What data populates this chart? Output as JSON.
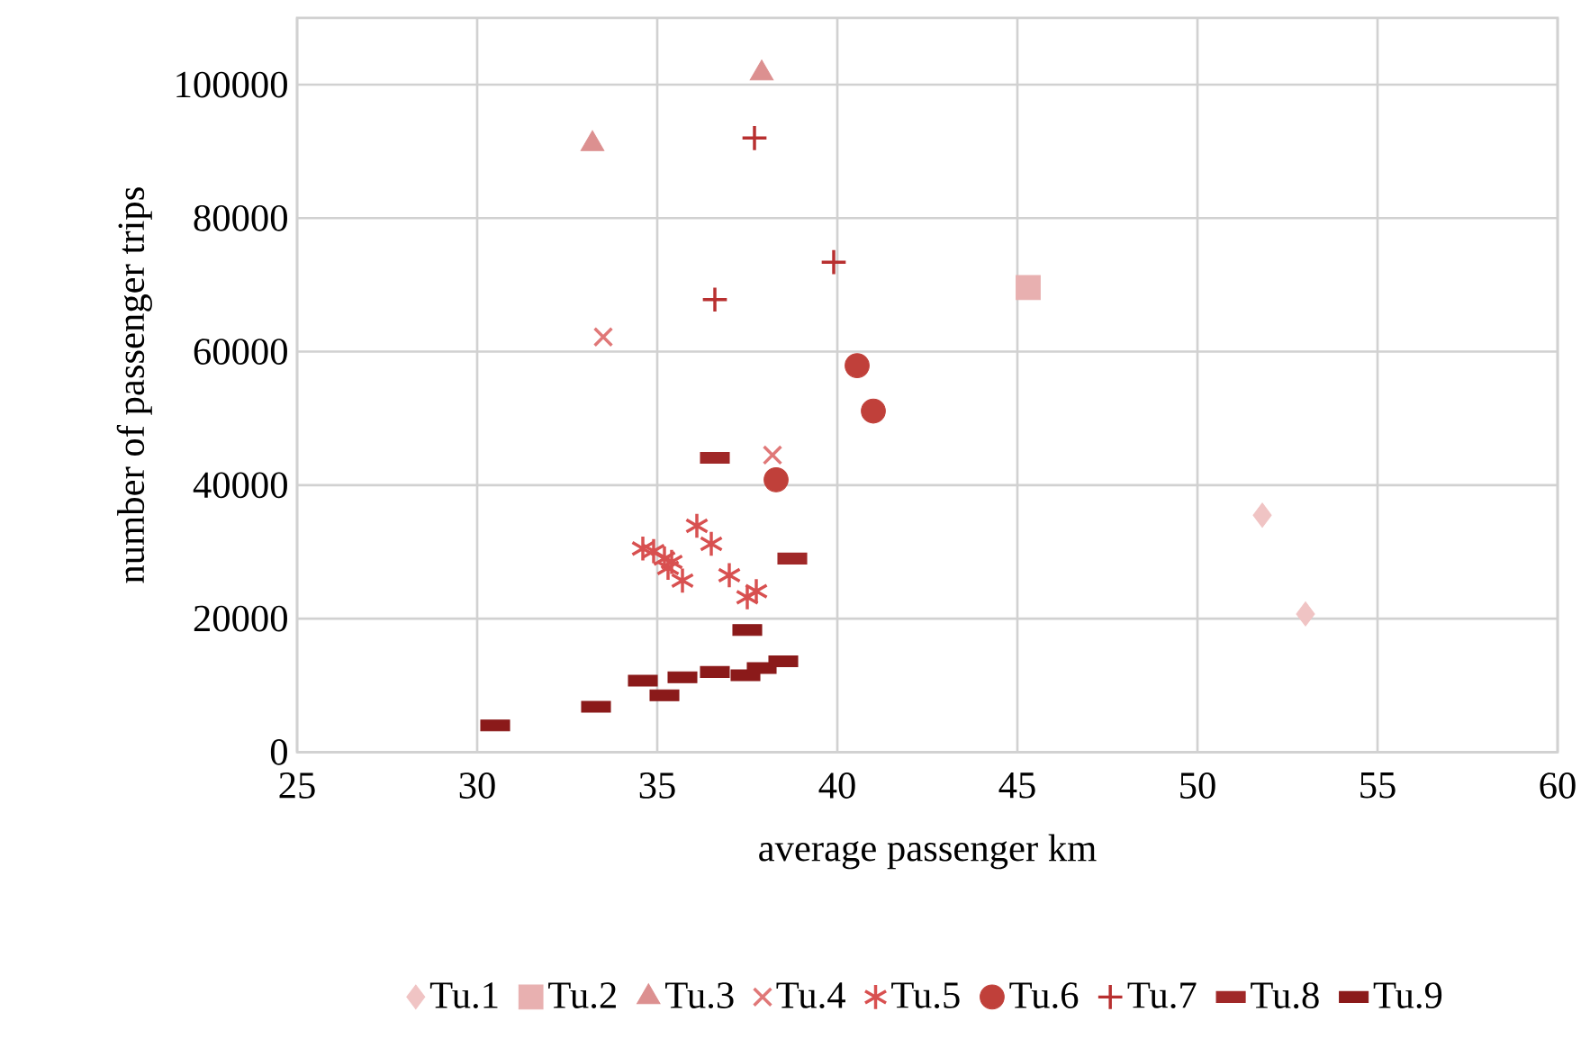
{
  "chart_data": {
    "type": "scatter",
    "xlabel": "average passenger km",
    "ylabel": "number of passenger trips",
    "xlim": [
      25,
      60
    ],
    "xticks": [
      25,
      30,
      35,
      40,
      45,
      50,
      55,
      60
    ],
    "ylim": [
      0,
      110000
    ],
    "yticks": [
      0,
      20000,
      40000,
      60000,
      80000,
      100000
    ],
    "grid": true,
    "legend": "bottom",
    "series": [
      {
        "name": "Tu.1",
        "color": "#f0c4c4",
        "marker": "diamond",
        "x": [
          51.8,
          53.0
        ],
        "values": [
          35500,
          20700
        ]
      },
      {
        "name": "Tu.2",
        "color": "#e8b0b0",
        "marker": "square",
        "x": [
          45.3
        ],
        "values": [
          69600
        ]
      },
      {
        "name": "Tu.3",
        "color": "#dc9090",
        "marker": "triangle",
        "x": [
          37.9,
          33.2
        ],
        "values": [
          101700,
          91100
        ]
      },
      {
        "name": "Tu.4",
        "color": "#e07878",
        "marker": "cross",
        "x": [
          33.5,
          38.2
        ],
        "values": [
          62200,
          44500
        ]
      },
      {
        "name": "Tu.5",
        "color": "#d85050",
        "x": [
          34.6,
          34.9,
          35.2,
          35.4,
          35.3,
          35.7,
          36.1,
          36.5,
          37.0,
          37.5,
          37.75
        ],
        "values": [
          30500,
          30100,
          29000,
          28500,
          27600,
          25700,
          33900,
          31200,
          26500,
          23200,
          24100
        ]
      },
      {
        "name": "Tu.6",
        "color": "#c0403a",
        "marker": "circle",
        "x": [
          40.55,
          41.0,
          38.3
        ],
        "values": [
          57900,
          51100,
          40800
        ]
      },
      {
        "name": "Tu.7",
        "color": "#b83030",
        "marker": "plus",
        "x": [
          37.7,
          39.9,
          36.6
        ],
        "values": [
          92000,
          73400,
          67800
        ]
      },
      {
        "name": "Tu.8",
        "color": "#a02828",
        "marker": "square",
        "x": [
          36.6,
          38.75
        ],
        "values": [
          44100,
          29000
        ]
      },
      {
        "name": "Tu.9",
        "color": "#8b1a1a",
        "marker": "square",
        "x": [
          30.5,
          33.3,
          34.6,
          35.2,
          35.7,
          36.6,
          37.45,
          37.9,
          38.5,
          37.5
        ],
        "values": [
          4000,
          6800,
          10700,
          8500,
          11200,
          12000,
          11500,
          12600,
          13600,
          18300
        ]
      }
    ]
  }
}
